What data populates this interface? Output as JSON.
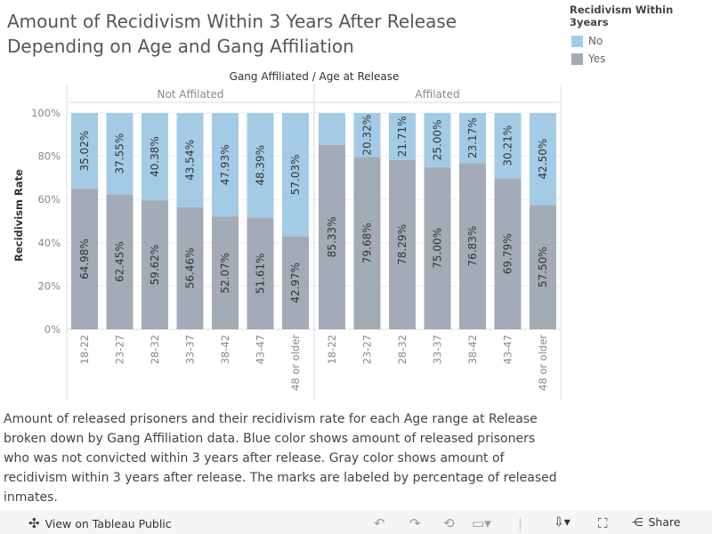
{
  "title": "Amount of Recidivism Within 3 Years After Release Depending on Age and Gang Affiliation",
  "legend": {
    "title": "Recidivism Within 3years",
    "items": [
      {
        "label": "No",
        "color": "#a3cbe6"
      },
      {
        "label": "Yes",
        "color": "#a3abb6"
      }
    ]
  },
  "caption": "Amount of released prisoners and their recidivism rate for each Age range at Release broken down by Gang Affiliation data.  Blue color shows amount of released prisoners who was not convicted within 3 years after release. Gray color shows amount of recidivism within 3 years after release. The marks are labeled by percentage of released inmates.",
  "chart_data": {
    "type": "bar",
    "stacked": true,
    "header": "Gang Affiliated  /  Age at Release",
    "ylabel": "Recidivism Rate",
    "ylim": [
      0,
      100
    ],
    "yticks": [
      "0%",
      "20%",
      "40%",
      "60%",
      "80%",
      "100%"
    ],
    "categories": [
      "18-22",
      "23-27",
      "28-32",
      "33-37",
      "38-42",
      "43-47",
      "48 or older"
    ],
    "panels": [
      {
        "name": "Not Affilated",
        "yes": [
          64.98,
          62.45,
          59.62,
          56.46,
          52.07,
          51.61,
          42.97
        ],
        "yes_labels": [
          "64.98%",
          "62.45%",
          "59.62%",
          "56.46%",
          "52.07%",
          "51.61%",
          "42.97%"
        ],
        "no": [
          35.02,
          37.55,
          40.38,
          43.54,
          47.93,
          48.39,
          57.03
        ],
        "no_labels": [
          "35.02%",
          "37.55%",
          "40.38%",
          "43.54%",
          "47.93%",
          "48.39%",
          "57.03%"
        ]
      },
      {
        "name": "Affilated",
        "yes": [
          85.33,
          79.68,
          78.29,
          75.0,
          76.83,
          69.79,
          57.5
        ],
        "yes_labels": [
          "85.33%",
          "79.68%",
          "78.29%",
          "75.00%",
          "76.83%",
          "69.79%",
          "57.50%"
        ],
        "no": [
          14.67,
          20.32,
          21.71,
          25.0,
          23.17,
          30.21,
          42.5
        ],
        "no_labels": [
          "",
          "20.32%",
          "21.71%",
          "25.00%",
          "23.17%",
          "30.21%",
          "42.50%"
        ]
      }
    ],
    "series_colors": {
      "No": "#a3cbe6",
      "Yes": "#a3abb6"
    },
    "grid": true
  },
  "toolbar": {
    "view": "View on Tableau Public",
    "share": "Share"
  }
}
